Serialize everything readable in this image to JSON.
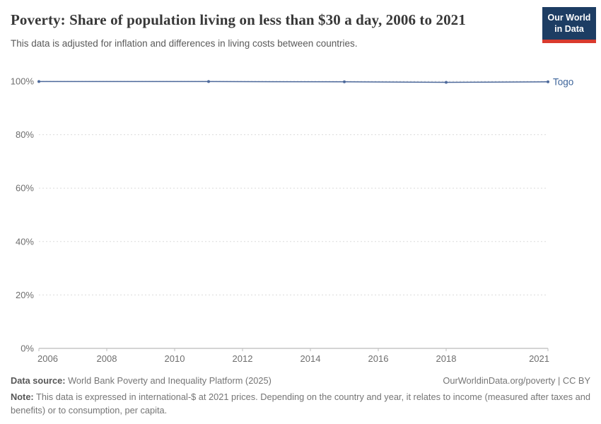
{
  "header": {
    "title": "Poverty: Share of population living on less than $30 a day, 2006 to 2021",
    "subtitle": "This data is adjusted for inflation and differences in living costs between countries."
  },
  "logo": {
    "line1": "Our World",
    "line2": "in Data",
    "bg_color": "#1d3d63",
    "accent_color": "#d93a2e"
  },
  "chart_data": {
    "type": "line",
    "title": "Poverty: Share of population living on less than $30 a day, 2006 to 2021",
    "x": [
      2006,
      2011,
      2015,
      2018,
      2021
    ],
    "series": [
      {
        "name": "Togo",
        "values": [
          99.9,
          99.9,
          99.8,
          99.6,
          99.8
        ]
      }
    ],
    "xticks": [
      2006,
      2008,
      2010,
      2012,
      2014,
      2016,
      2018,
      2021
    ],
    "yticks": [
      0,
      20,
      40,
      60,
      80,
      100
    ],
    "xlim": [
      2006,
      2021
    ],
    "ylim": [
      0,
      100
    ],
    "ytick_suffix": "%",
    "grid": "horizontal dashed",
    "legend_position": "line-end-label",
    "line_color": "#4d699b",
    "label_color": "#3d649a",
    "marker": "dot"
  },
  "footer": {
    "source_label": "Data source:",
    "source_text": " World Bank Poverty and Inequality Platform (2025)",
    "license_text": "OurWorldinData.org/poverty | CC BY",
    "note_label": "Note:",
    "note_text": " This data is expressed in international-$ at 2021 prices. Depending on the country and year, it relates to income (measured after taxes and benefits) or to consumption, per capita."
  }
}
